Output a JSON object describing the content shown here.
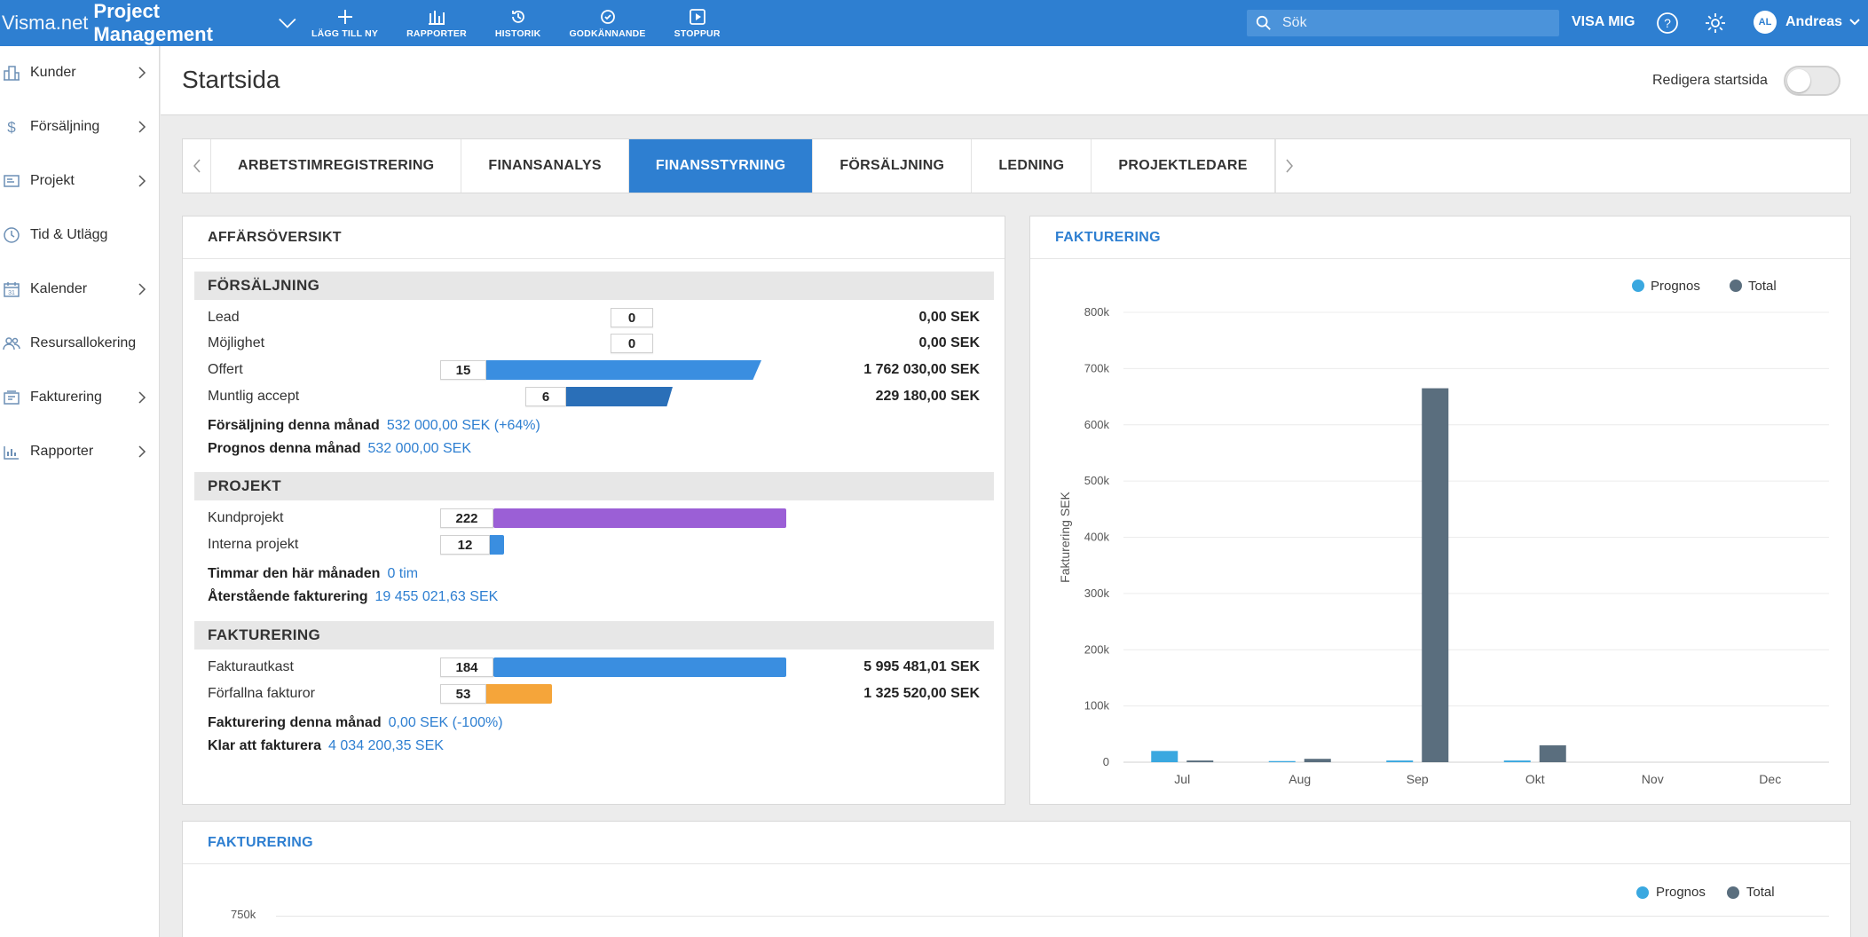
{
  "topbar": {
    "brand_light": "Visma.net",
    "brand_bold": "Project Management",
    "tools": [
      {
        "label": "LÄGG TILL NY",
        "icon": "plus-icon"
      },
      {
        "label": "RAPPORTER",
        "icon": "bar-chart-icon"
      },
      {
        "label": "HISTORIK",
        "icon": "history-icon"
      },
      {
        "label": "GODKÄNNANDE",
        "icon": "approval-icon"
      },
      {
        "label": "STOPPUR",
        "icon": "play-icon"
      }
    ],
    "search_placeholder": "Sök",
    "visa_mig": "VISA MIG",
    "user_initials": "AL",
    "user_name": "Andreas",
    "accent": "#2e7fd1"
  },
  "sidebar": {
    "items": [
      {
        "label": "Kunder",
        "icon": "buildings-icon",
        "chevron": true
      },
      {
        "label": "Försäljning",
        "icon": "dollar-icon",
        "chevron": true
      },
      {
        "label": "Projekt",
        "icon": "project-icon",
        "chevron": true
      },
      {
        "label": "Tid & Utlägg",
        "icon": "clock-icon",
        "chevron": false
      },
      {
        "label": "Kalender",
        "icon": "calendar-icon",
        "chevron": true
      },
      {
        "label": "Resursallokering",
        "icon": "users-icon",
        "chevron": false
      },
      {
        "label": "Fakturering",
        "icon": "invoice-icon",
        "chevron": true
      },
      {
        "label": "Rapporter",
        "icon": "report-icon",
        "chevron": true
      }
    ]
  },
  "header": {
    "title": "Startsida",
    "edit_label": "Redigera startsida"
  },
  "tabs": [
    {
      "label": "ARBETSTIMREGISTRERING",
      "active": false
    },
    {
      "label": "FINANSANALYS",
      "active": false
    },
    {
      "label": "FINANSSTYRNING",
      "active": true
    },
    {
      "label": "FÖRSÄLJNING",
      "active": false
    },
    {
      "label": "LEDNING",
      "active": false
    },
    {
      "label": "PROJEKTLEDARE",
      "active": false
    }
  ],
  "overview": {
    "title": "AFFÄRSÖVERSIKT",
    "sales": {
      "heading": "FÖRSÄLJNING",
      "rows": [
        {
          "label": "Lead",
          "count": "0",
          "amount": "0,00 SEK"
        },
        {
          "label": "Möjlighet",
          "count": "0",
          "amount": "0,00 SEK"
        },
        {
          "label": "Offert",
          "count": "15",
          "amount": "1 762 030,00 SEK"
        },
        {
          "label": "Muntlig accept",
          "count": "6",
          "amount": "229 180,00 SEK"
        }
      ],
      "sum1_key": "Försäljning denna månad",
      "sum1_val": "532 000,00 SEK (+64%)",
      "sum2_key": "Prognos denna månad",
      "sum2_val": "532 000,00 SEK"
    },
    "projects": {
      "heading": "PROJEKT",
      "rows": [
        {
          "label": "Kundprojekt",
          "count": "222"
        },
        {
          "label": "Interna projekt",
          "count": "12"
        }
      ],
      "sum1_key": "Timmar den här månaden",
      "sum1_val": "0 tim",
      "sum2_key": "Återstående fakturering",
      "sum2_val": "19 455 021,63 SEK"
    },
    "invoicing": {
      "heading": "FAKTURERING",
      "rows": [
        {
          "label": "Fakturautkast",
          "count": "184",
          "amount": "5 995 481,01 SEK"
        },
        {
          "label": "Förfallna fakturor",
          "count": "53",
          "amount": "1 325 520,00 SEK"
        }
      ],
      "sum1_key": "Fakturering denna månad",
      "sum1_val": "0,00 SEK (-100%)",
      "sum2_key": "Klar att fakturera",
      "sum2_val": "4 034 200,35 SEK"
    },
    "colors": {
      "blue": "#3a8ee0",
      "dark_blue": "#2a6fb8",
      "purple": "#9b5fd6",
      "orange": "#f5a53a"
    }
  },
  "invoice_chart_panel": {
    "title": "FAKTURERING"
  },
  "chart_data": [
    {
      "type": "bar",
      "title": "FAKTURERING",
      "ylabel": "Fakturering SEK",
      "xlabel": "",
      "categories": [
        "Jul",
        "Aug",
        "Sep",
        "Okt",
        "Nov",
        "Dec"
      ],
      "ylim": [
        0,
        800000
      ],
      "yticks": [
        "0",
        "100k",
        "200k",
        "300k",
        "400k",
        "500k",
        "600k",
        "700k",
        "800k"
      ],
      "legend_position": "top-right",
      "grid": true,
      "series": [
        {
          "name": "Prognos",
          "color": "#3aa8e0",
          "values": [
            20000,
            2000,
            3000,
            3000,
            0,
            0
          ]
        },
        {
          "name": "Total",
          "color": "#5a6e7e",
          "values": [
            3000,
            6000,
            665000,
            30000,
            0,
            0
          ]
        }
      ]
    },
    {
      "type": "bar",
      "title": "FAKTURERING",
      "legend_position": "top-right",
      "yticks": [
        "750k"
      ],
      "series": [
        {
          "name": "Prognos",
          "color": "#3aa8e0"
        },
        {
          "name": "Total",
          "color": "#5a6e7e"
        }
      ]
    }
  ],
  "bottom_panel": {
    "title": "FAKTURERING",
    "ytick": "750k"
  }
}
